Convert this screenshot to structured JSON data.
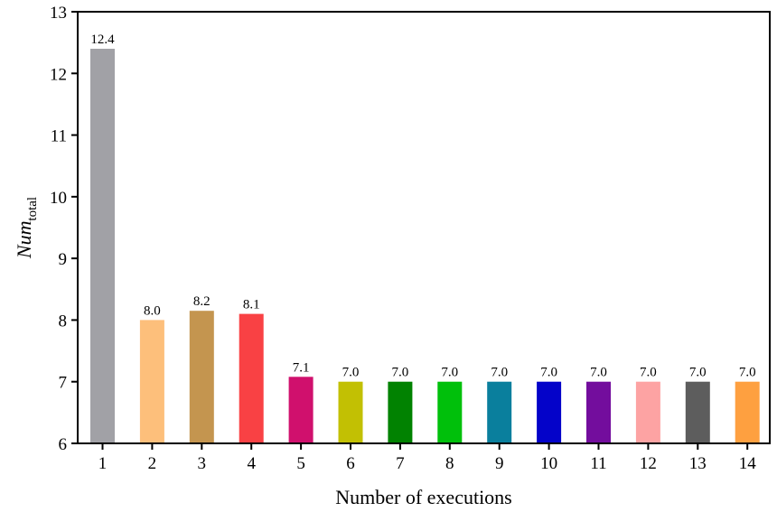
{
  "chart_data": {
    "type": "bar",
    "title": "",
    "xlabel": "Number of executions",
    "ylabel_main": "Num",
    "ylabel_sub": "total",
    "categories": [
      "1",
      "2",
      "3",
      "4",
      "5",
      "6",
      "7",
      "8",
      "9",
      "10",
      "11",
      "12",
      "13",
      "14"
    ],
    "values": [
      12.4,
      8.0,
      8.15,
      8.1,
      7.08,
      7.0,
      7.0,
      7.0,
      7.0,
      7.0,
      7.0,
      7.0,
      7.0,
      7.0
    ],
    "data_labels": [
      "12.4",
      "8.0",
      "8.2",
      "8.1",
      "7.1",
      "7.0",
      "7.0",
      "7.0",
      "7.0",
      "7.0",
      "7.0",
      "7.0",
      "7.0",
      "7.0"
    ],
    "colors": [
      "#a1a1a6",
      "#fdbf7b",
      "#c4954f",
      "#f94144",
      "#d0106d",
      "#c2c003",
      "#018201",
      "#00c00b",
      "#0a7f9d",
      "#0403c9",
      "#730d9d",
      "#fda3a3",
      "#5d5d5d",
      "#fea040"
    ],
    "ylim": [
      6,
      13
    ],
    "yticks": [
      "6",
      "7",
      "8",
      "9",
      "10",
      "11",
      "12",
      "13"
    ],
    "grid": false,
    "legend": "none"
  }
}
